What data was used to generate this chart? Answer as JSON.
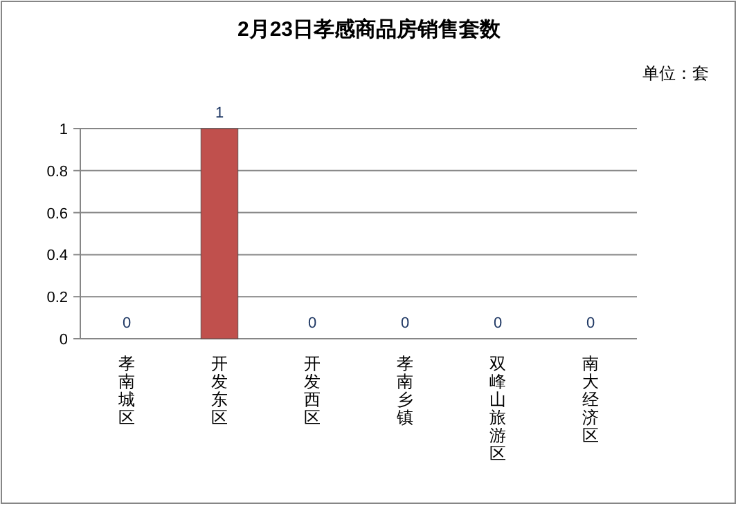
{
  "chart_data": {
    "type": "bar",
    "title": "2月23日孝感商品房销售套数",
    "categories": [
      "孝南城区",
      "开发东区",
      "开发西区",
      "孝南乡镇",
      "双峰山旅游区",
      "南大经济区"
    ],
    "values": [
      0,
      1,
      0,
      0,
      0,
      0
    ],
    "colors": [
      "#4f81bd",
      "#c0504d",
      "#9bbb59",
      "#8064a2",
      "#4bacc6",
      "#f79646"
    ],
    "ylim": [
      0,
      1
    ],
    "yticks": [
      0,
      0.2,
      0.4,
      0.6,
      0.8,
      1
    ],
    "grid": "y",
    "data_labels": true,
    "annotations": [
      "单位：套"
    ]
  }
}
